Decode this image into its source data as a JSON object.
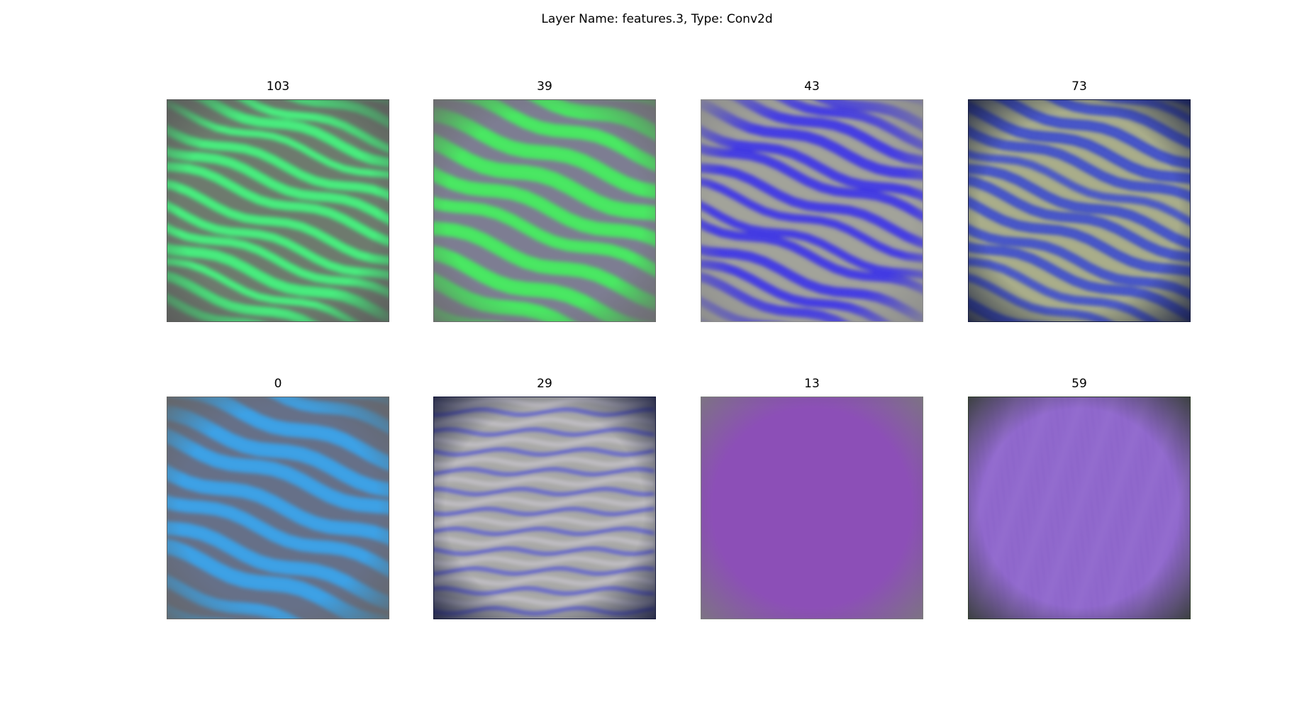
{
  "figure": {
    "title": "Layer Name: features.3, Type: Conv2d"
  },
  "panels": [
    {
      "label": "103",
      "texture": "diagonal-ridges",
      "base": "#6e7a6e",
      "stripe": "#3ef07a",
      "accent": "#a0ffbe",
      "edge": "#585858"
    },
    {
      "label": "39",
      "texture": "diagonal-stripes",
      "base": "#7d7d92",
      "stripe": "#43ec5e",
      "accent": "#7cf58a",
      "edge": "#6a6a6a"
    },
    {
      "label": "43",
      "texture": "diagonal-ridges",
      "base": "#a2a39a",
      "stripe": "#3b32e6",
      "accent": "#7a78f0",
      "edge": "#8a8a8a"
    },
    {
      "label": "73",
      "texture": "diagonal-ridges",
      "base": "#a9ad8a",
      "stripe": "#2a3ed0",
      "accent": "#e8f080",
      "edge": "#141a3c"
    },
    {
      "label": "0",
      "texture": "diagonal-stripes",
      "base": "#667088",
      "stripe": "#3aa2ea",
      "accent": "#5cb6f0",
      "edge": "#646464"
    },
    {
      "label": "29",
      "texture": "horizontal-waves",
      "base": "#a8a8a6",
      "stripe": "#3236e8",
      "accent": "#c9c6cf",
      "edge": "#121638"
    },
    {
      "label": "13",
      "texture": "flat",
      "base": "#8a4cb6",
      "stripe": "#8a4cb6",
      "accent": "#8e52b8",
      "edge": "#7a7a7a"
    },
    {
      "label": "59",
      "texture": "vertical-streaks",
      "base": "#8a62c8",
      "stripe": "#c7a6e0",
      "accent": "#a07ad8",
      "edge": "#2e3a2a"
    }
  ]
}
